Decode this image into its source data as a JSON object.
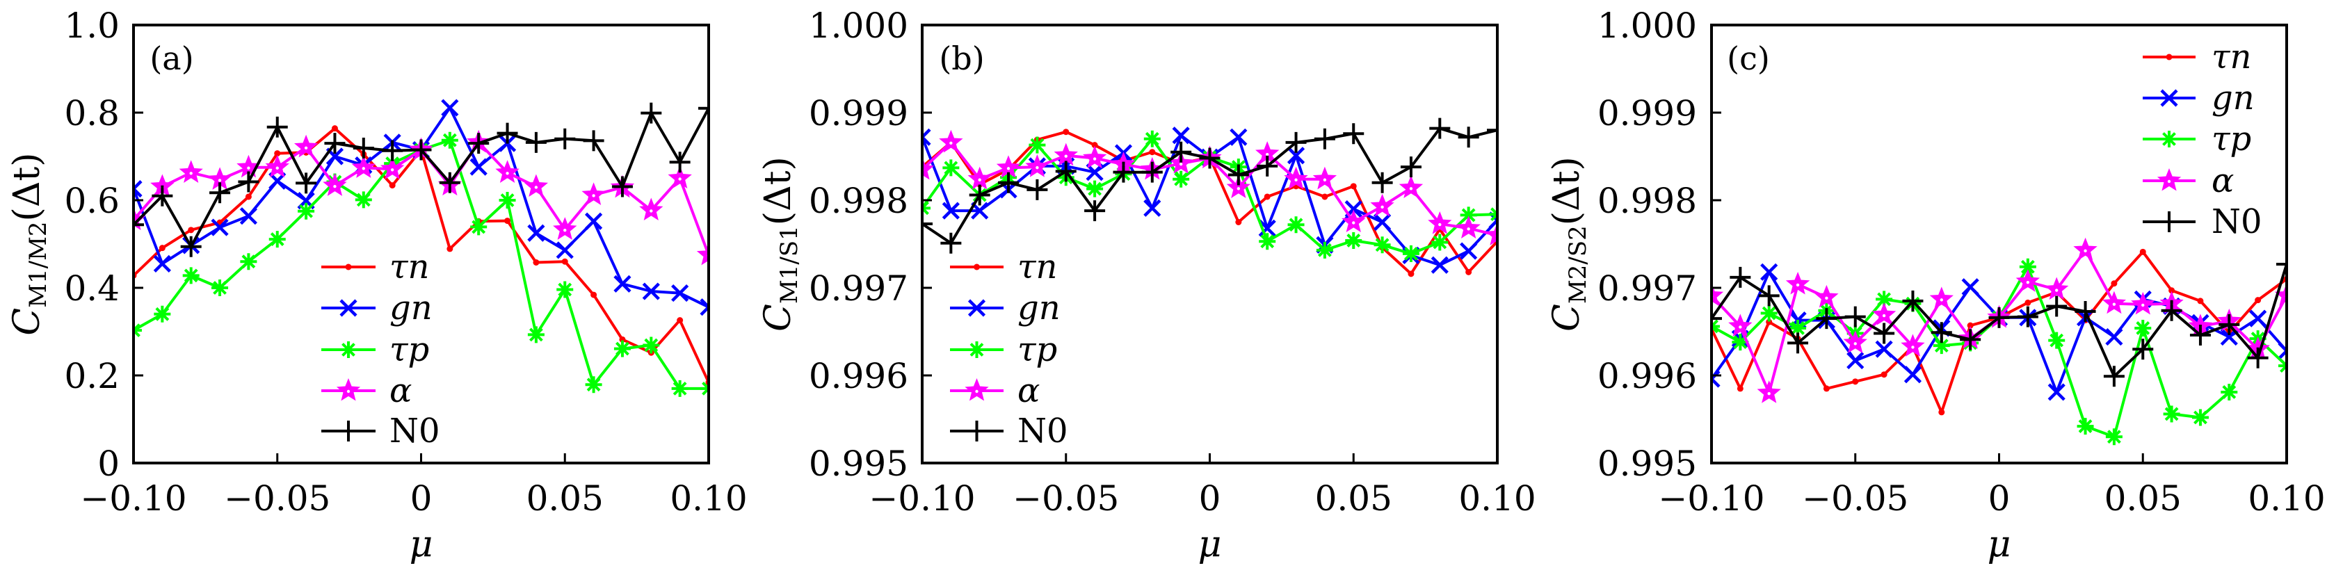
{
  "chart_data": [
    {
      "type": "line",
      "panel_label": "(a)",
      "xlabel": "μ",
      "ylabel": "C",
      "ylabel_sub": "M1/M2",
      "ylabel_suffix": "(Δt)",
      "xlim": [
        -0.1,
        0.1
      ],
      "ylim": [
        0,
        1.0
      ],
      "xticks": [
        -0.1,
        -0.05,
        0,
        0.05,
        0.1
      ],
      "xtick_labels": [
        "−0.10",
        "−0.05",
        "0",
        "0.05",
        "0.10"
      ],
      "yticks": [
        0,
        0.2,
        0.4,
        0.6,
        0.8,
        1.0
      ],
      "ytick_labels": [
        "0",
        "0.2",
        "0.4",
        "0.6",
        "0.8",
        "1.0"
      ],
      "grid": false,
      "legend_position": "bottom-center",
      "x": [
        -0.1,
        -0.09,
        -0.08,
        -0.07,
        -0.06,
        -0.05,
        -0.04,
        -0.03,
        -0.02,
        -0.01,
        0,
        0.01,
        0.02,
        0.03,
        0.04,
        0.05,
        0.06,
        0.07,
        0.08,
        0.09,
        0.1
      ],
      "series": [
        {
          "name": "τn",
          "color": "#ff0000",
          "marker": "dot",
          "values": [
            0.428,
            0.491,
            0.532,
            0.549,
            0.608,
            0.707,
            0.709,
            0.764,
            0.705,
            0.634,
            0.715,
            0.489,
            0.552,
            0.553,
            0.458,
            0.46,
            0.384,
            0.282,
            0.252,
            0.326,
            0.184
          ]
        },
        {
          "name": "gn",
          "color": "#0000ff",
          "marker": "x",
          "values": [
            0.626,
            0.455,
            0.497,
            0.538,
            0.564,
            0.644,
            0.599,
            0.7,
            0.68,
            0.732,
            0.715,
            0.811,
            0.676,
            0.73,
            0.525,
            0.486,
            0.552,
            0.409,
            0.392,
            0.388,
            0.356
          ]
        },
        {
          "name": "τp",
          "color": "#00ff00",
          "marker": "asterisk",
          "values": [
            0.303,
            0.34,
            0.428,
            0.4,
            0.46,
            0.511,
            0.575,
            0.642,
            0.601,
            0.684,
            0.715,
            0.737,
            0.539,
            0.6,
            0.293,
            0.396,
            0.179,
            0.261,
            0.269,
            0.17,
            0.17
          ]
        },
        {
          "name": "α",
          "color": "#ff00ff",
          "marker": "star",
          "values": [
            0.555,
            0.631,
            0.663,
            0.647,
            0.675,
            0.675,
            0.721,
            0.633,
            0.674,
            0.671,
            0.715,
            0.634,
            0.732,
            0.663,
            0.631,
            0.533,
            0.612,
            0.629,
            0.577,
            0.65,
            0.475
          ]
        },
        {
          "name": "N0",
          "color": "#000000",
          "marker": "plus",
          "values": [
            0.544,
            0.61,
            0.494,
            0.617,
            0.642,
            0.767,
            0.639,
            0.73,
            0.719,
            0.713,
            0.715,
            0.64,
            0.73,
            0.753,
            0.732,
            0.74,
            0.736,
            0.631,
            0.799,
            0.687,
            0.81
          ]
        }
      ]
    },
    {
      "type": "line",
      "panel_label": "(b)",
      "xlabel": "μ",
      "ylabel": "C",
      "ylabel_sub": "M1/S1",
      "ylabel_suffix": "(Δt)",
      "xlim": [
        -0.1,
        0.1
      ],
      "ylim": [
        0.995,
        1.0
      ],
      "xticks": [
        -0.1,
        -0.05,
        0,
        0.05,
        0.1
      ],
      "xtick_labels": [
        "−0.10",
        "−0.05",
        "0",
        "0.05",
        "0.10"
      ],
      "yticks": [
        0.995,
        0.996,
        0.997,
        0.998,
        0.999,
        1.0
      ],
      "ytick_labels": [
        "0.995",
        "0.996",
        "0.997",
        "0.998",
        "0.999",
        "1.000"
      ],
      "grid": false,
      "legend_position": "bottom-left",
      "x": [
        -0.1,
        -0.09,
        -0.08,
        -0.07,
        -0.06,
        -0.05,
        -0.04,
        -0.03,
        -0.02,
        -0.01,
        0,
        0.01,
        0.02,
        0.03,
        0.04,
        0.05,
        0.06,
        0.07,
        0.08,
        0.09,
        0.1
      ],
      "series": [
        {
          "name": "τn",
          "color": "#ff0000",
          "marker": "dot",
          "values": [
            0.99838,
            0.99866,
            0.99818,
            0.99835,
            0.99869,
            0.99878,
            0.99863,
            0.99845,
            0.99855,
            0.99842,
            0.99849,
            0.99775,
            0.99804,
            0.99816,
            0.99804,
            0.99816,
            0.99746,
            0.99716,
            0.99767,
            0.99718,
            0.99753
          ]
        },
        {
          "name": "gn",
          "color": "#0000ff",
          "marker": "x",
          "values": [
            0.99872,
            0.99788,
            0.99788,
            0.99812,
            0.99839,
            0.99839,
            0.99832,
            0.99854,
            0.99791,
            0.99874,
            0.99849,
            0.99872,
            0.99768,
            0.99851,
            0.99749,
            0.9979,
            0.99775,
            0.99737,
            0.99726,
            0.99742,
            0.99777
          ]
        },
        {
          "name": "τp",
          "color": "#00ff00",
          "marker": "asterisk",
          "values": [
            0.99791,
            0.99837,
            0.99806,
            0.99826,
            0.99863,
            0.99826,
            0.99813,
            0.9983,
            0.9987,
            0.99824,
            0.99849,
            0.99838,
            0.99753,
            0.99772,
            0.99743,
            0.99754,
            0.99749,
            0.99739,
            0.99752,
            0.99783,
            0.99784
          ]
        },
        {
          "name": "α",
          "color": "#ff00ff",
          "marker": "star",
          "values": [
            0.99835,
            0.99866,
            0.99824,
            0.99837,
            0.99838,
            0.99851,
            0.99848,
            0.99841,
            0.99835,
            0.99842,
            0.99848,
            0.99814,
            0.99853,
            0.99824,
            0.99824,
            0.99775,
            0.99793,
            0.99814,
            0.99773,
            0.99768,
            0.9976
          ]
        },
        {
          "name": "N0",
          "color": "#000000",
          "marker": "plus",
          "values": [
            0.99773,
            0.99751,
            0.99806,
            0.9982,
            0.99812,
            0.99833,
            0.99788,
            0.99832,
            0.99832,
            0.99855,
            0.99848,
            0.99829,
            0.99839,
            0.99866,
            0.9987,
            0.99876,
            0.9982,
            0.99838,
            0.99882,
            0.99872,
            0.9988
          ]
        }
      ]
    },
    {
      "type": "line",
      "panel_label": "(c)",
      "xlabel": "μ",
      "ylabel": "C",
      "ylabel_sub": "M2/S2",
      "ylabel_suffix": "(Δt)",
      "xlim": [
        -0.1,
        0.1
      ],
      "ylim": [
        0.995,
        1.0
      ],
      "xticks": [
        -0.1,
        -0.05,
        0,
        0.05,
        0.1
      ],
      "xtick_labels": [
        "−0.10",
        "−0.05",
        "0",
        "0.05",
        "0.10"
      ],
      "yticks": [
        0.995,
        0.996,
        0.997,
        0.998,
        0.999,
        1.0
      ],
      "ytick_labels": [
        "0.995",
        "0.996",
        "0.997",
        "0.998",
        "0.999",
        "1.000"
      ],
      "grid": false,
      "legend_position": "top-right",
      "x": [
        -0.1,
        -0.09,
        -0.08,
        -0.07,
        -0.06,
        -0.05,
        -0.04,
        -0.03,
        -0.02,
        -0.01,
        0,
        0.01,
        0.02,
        0.03,
        0.04,
        0.05,
        0.06,
        0.07,
        0.08,
        0.09,
        0.1
      ],
      "series": [
        {
          "name": "τn",
          "color": "#ff0000",
          "marker": "dot",
          "values": [
            0.99653,
            0.99585,
            0.99661,
            0.99642,
            0.99585,
            0.99593,
            0.99601,
            0.99633,
            0.99558,
            0.99657,
            0.99666,
            0.99683,
            0.99695,
            0.99663,
            0.99705,
            0.99741,
            0.99697,
            0.99685,
            0.99649,
            0.99686,
            0.9971
          ]
        },
        {
          "name": "gn",
          "color": "#0000ff",
          "marker": "x",
          "values": [
            0.99596,
            0.99642,
            0.99718,
            0.99663,
            0.99663,
            0.99617,
            0.9963,
            0.99601,
            0.99654,
            0.99701,
            0.99666,
            0.99666,
            0.99581,
            0.99666,
            0.99644,
            0.99687,
            0.99679,
            0.9966,
            0.99644,
            0.99665,
            0.99628
          ]
        },
        {
          "name": "τp",
          "color": "#00ff00",
          "marker": "asterisk",
          "values": [
            0.99656,
            0.99638,
            0.99671,
            0.99654,
            0.99674,
            0.99648,
            0.99687,
            0.99682,
            0.99634,
            0.99637,
            0.99666,
            0.99724,
            0.9964,
            0.99542,
            0.9953,
            0.99654,
            0.99556,
            0.99552,
            0.99581,
            0.99642,
            0.99611
          ]
        },
        {
          "name": "α",
          "color": "#ff00ff",
          "marker": "star",
          "values": [
            0.99691,
            0.99656,
            0.9958,
            0.99704,
            0.99689,
            0.99637,
            0.99669,
            0.99633,
            0.99687,
            0.99642,
            0.99666,
            0.99707,
            0.99698,
            0.99743,
            0.99682,
            0.99681,
            0.99682,
            0.99656,
            0.99662,
            0.9963,
            0.99691
          ]
        },
        {
          "name": "N0",
          "color": "#000000",
          "marker": "plus",
          "values": [
            0.99665,
            0.99712,
            0.99691,
            0.99637,
            0.99665,
            0.99667,
            0.99648,
            0.99685,
            0.99649,
            0.99641,
            0.99666,
            0.99667,
            0.99679,
            0.99673,
            0.99599,
            0.9963,
            0.99674,
            0.99646,
            0.99658,
            0.9962,
            0.99727
          ]
        }
      ]
    }
  ]
}
